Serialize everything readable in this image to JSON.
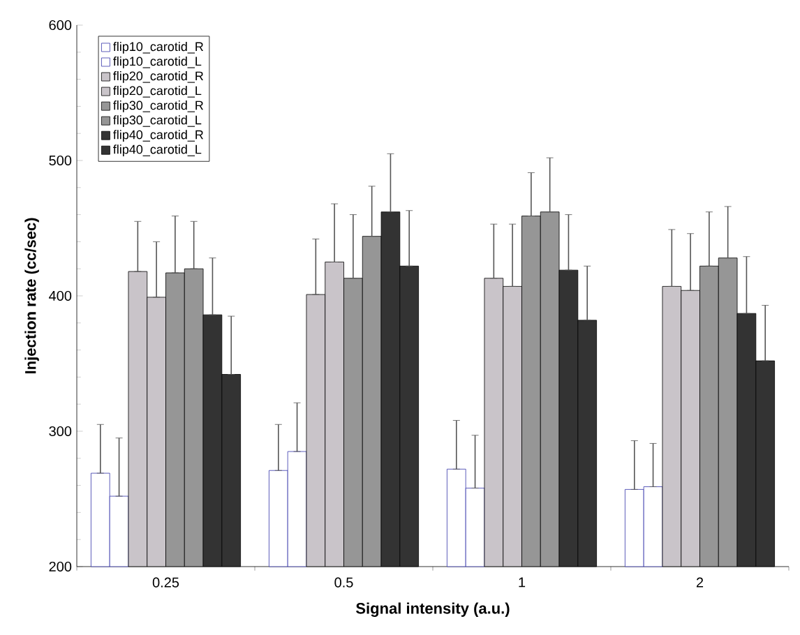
{
  "chart_data": {
    "type": "bar",
    "xlabel": "Signal intensity (a.u.)",
    "ylabel": "Injection rate (cc/sec)",
    "categories": [
      "0.25",
      "0.5",
      "1",
      "2"
    ],
    "ylim": [
      200,
      600
    ],
    "yticks": [
      200,
      300,
      400,
      500,
      600
    ],
    "legend": "top left",
    "grid": false,
    "series": [
      {
        "name": "flip10_carotid_R",
        "color": "#ffffff",
        "values": [
          269,
          271,
          272,
          257
        ],
        "errors": [
          [
            269,
            305
          ],
          [
            271,
            305
          ],
          [
            272,
            308
          ],
          [
            257,
            293
          ]
        ]
      },
      {
        "name": "flip10_carotid_L",
        "color": "#ffffff",
        "values": [
          252,
          285,
          258,
          259
        ],
        "errors": [
          [
            252,
            295
          ],
          [
            285,
            321
          ],
          [
            258,
            297
          ],
          [
            259,
            291
          ]
        ]
      },
      {
        "name": "flip20_carotid_R",
        "color": "#c9c4c9",
        "values": [
          418,
          401,
          413,
          407
        ],
        "errors": [
          [
            418,
            455
          ],
          [
            401,
            442
          ],
          [
            413,
            453
          ],
          [
            407,
            449
          ]
        ]
      },
      {
        "name": "flip20_carotid_L",
        "color": "#c9c4c9",
        "values": [
          399,
          425,
          407,
          404
        ],
        "errors": [
          [
            399,
            440
          ],
          [
            425,
            468
          ],
          [
            407,
            453
          ],
          [
            404,
            446
          ]
        ]
      },
      {
        "name": "flip30_carotid_R",
        "color": "#969696",
        "values": [
          417,
          413,
          459,
          422
        ],
        "errors": [
          [
            417,
            459
          ],
          [
            413,
            460
          ],
          [
            459,
            491
          ],
          [
            422,
            462
          ]
        ]
      },
      {
        "name": "flip30_carotid_L",
        "color": "#969696",
        "values": [
          420,
          444,
          462,
          428
        ],
        "errors": [
          [
            420,
            455
          ],
          [
            444,
            481
          ],
          [
            462,
            502
          ],
          [
            428,
            466
          ]
        ]
      },
      {
        "name": "flip40_carotid_R",
        "color": "#333333",
        "values": [
          386,
          462,
          419,
          387
        ],
        "errors": [
          [
            386,
            428
          ],
          [
            462,
            505
          ],
          [
            419,
            460
          ],
          [
            387,
            429
          ]
        ]
      },
      {
        "name": "flip40_carotid_L",
        "color": "#333333",
        "values": [
          342,
          422,
          382,
          352
        ],
        "errors": [
          [
            342,
            385
          ],
          [
            422,
            463
          ],
          [
            382,
            422
          ],
          [
            352,
            393
          ]
        ]
      }
    ]
  }
}
